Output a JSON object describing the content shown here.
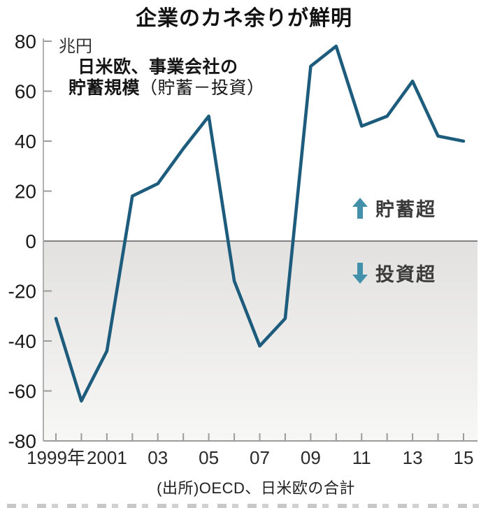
{
  "chart": {
    "title": "企業のカネ余りが鮮明",
    "unit_label": "兆円",
    "annotation_line1": "日米欧、事業会社の",
    "annotation_line2_bold": "貯蓄規模",
    "annotation_line2_paren": "（貯蓄－投資）",
    "above_label": "貯蓄超",
    "below_label": "投資超",
    "source": "(出所)OECD、日米欧の合計"
  },
  "chart_data": {
    "type": "line",
    "title": "企業のカネ余りが鮮明",
    "unit": "兆円",
    "x": [
      1999,
      2000,
      2001,
      2002,
      2003,
      2004,
      2005,
      2006,
      2007,
      2008,
      2009,
      2010,
      2011,
      2012,
      2013,
      2014,
      2015
    ],
    "values": [
      -31,
      -64,
      -44,
      18,
      23,
      37,
      50,
      -16,
      -42,
      -31,
      70,
      78,
      46,
      50,
      64,
      42,
      40
    ],
    "series_name": "日米欧、事業会社の貯蓄規模（貯蓄－投資）",
    "xtick_labeled_years": [
      1999,
      2001,
      2003,
      2005,
      2007,
      2009,
      2011,
      2013,
      2015
    ],
    "xtick_labels": [
      "1999年",
      "2001",
      "03",
      "05",
      "07",
      "09",
      "11",
      "13",
      "15"
    ],
    "ytick_values": [
      80,
      60,
      40,
      20,
      0,
      -20,
      -40,
      -60,
      -80
    ],
    "ylim": [
      -80,
      80
    ],
    "grid": false,
    "annotations": {
      "above_zero": "貯蓄超",
      "below_zero": "投資超"
    },
    "source": "(出所)OECD、日米欧の合計",
    "colors": {
      "line": "#1d5c7c",
      "arrow": "#4390ab",
      "below_zero_fill_top": "#e2e1df",
      "below_zero_fill_bottom": "#f7f7f6",
      "axis": "#9c9c9c",
      "zero_line": "#828282"
    }
  }
}
